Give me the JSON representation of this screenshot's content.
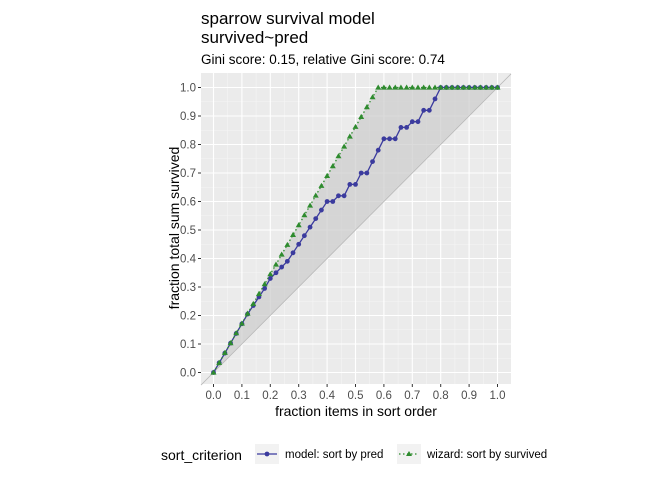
{
  "chart_data": {
    "type": "line",
    "title": "sparrow survival model",
    "title_line2": "survived~pred",
    "subtitle": "Gini score: 0.15, relative Gini score: 0.74",
    "xlabel": "fraction items in sort order",
    "ylabel": "fraction total sum survived",
    "xlim": [
      0.0,
      1.0
    ],
    "ylim": [
      0.0,
      1.0
    ],
    "x_ticks": [
      "0.0",
      "0.1",
      "0.2",
      "0.3",
      "0.4",
      "0.5",
      "0.6",
      "0.7",
      "0.8",
      "0.9",
      "1.0"
    ],
    "y_ticks": [
      "0.0",
      "0.1",
      "0.2",
      "0.3",
      "0.4",
      "0.5",
      "0.6",
      "0.7",
      "0.8",
      "0.9",
      "1.0"
    ],
    "grid": true,
    "panel_background": "#ebebeb",
    "legend": {
      "title": "sort_criterion",
      "position": "bottom"
    },
    "series": [
      {
        "name": "model: sort by pred",
        "color": "#3b3b9e",
        "marker": "circle",
        "line_style": "solid",
        "x": [
          0.0,
          0.02,
          0.04,
          0.06,
          0.08,
          0.1,
          0.12,
          0.14,
          0.16,
          0.18,
          0.2,
          0.22,
          0.24,
          0.26,
          0.28,
          0.3,
          0.32,
          0.34,
          0.36,
          0.38,
          0.4,
          0.42,
          0.44,
          0.46,
          0.48,
          0.5,
          0.52,
          0.54,
          0.56,
          0.58,
          0.6,
          0.62,
          0.64,
          0.66,
          0.68,
          0.7,
          0.72,
          0.74,
          0.76,
          0.78,
          0.8,
          0.82,
          0.84,
          0.86,
          0.88,
          0.9,
          0.92,
          0.94,
          0.96,
          0.98,
          1.0
        ],
        "y": [
          0.0,
          0.034,
          0.068,
          0.103,
          0.137,
          0.171,
          0.205,
          0.235,
          0.265,
          0.295,
          0.33,
          0.35,
          0.37,
          0.39,
          0.42,
          0.45,
          0.48,
          0.51,
          0.54,
          0.57,
          0.6,
          0.6,
          0.62,
          0.62,
          0.66,
          0.66,
          0.7,
          0.7,
          0.74,
          0.78,
          0.82,
          0.82,
          0.82,
          0.86,
          0.86,
          0.88,
          0.88,
          0.92,
          0.92,
          0.96,
          1.0,
          1.0,
          1.0,
          1.0,
          1.0,
          1.0,
          1.0,
          1.0,
          1.0,
          1.0,
          1.0
        ]
      },
      {
        "name": "wizard: sort by survived",
        "color": "#2e8b2e",
        "marker": "triangle",
        "line_style": "dotted",
        "x": [
          0.0,
          0.02,
          0.04,
          0.06,
          0.08,
          0.1,
          0.12,
          0.14,
          0.16,
          0.18,
          0.2,
          0.22,
          0.24,
          0.26,
          0.28,
          0.3,
          0.32,
          0.34,
          0.36,
          0.38,
          0.4,
          0.42,
          0.44,
          0.46,
          0.48,
          0.5,
          0.52,
          0.54,
          0.56,
          0.58,
          0.6,
          0.62,
          0.64,
          0.66,
          0.68,
          0.7,
          0.72,
          0.74,
          0.76,
          0.78,
          0.8,
          0.82,
          0.84,
          0.86,
          0.88,
          0.9,
          0.92,
          0.94,
          0.96,
          0.98,
          1.0
        ],
        "y": [
          0.0,
          0.034,
          0.069,
          0.103,
          0.138,
          0.172,
          0.207,
          0.241,
          0.276,
          0.31,
          0.345,
          0.379,
          0.414,
          0.448,
          0.483,
          0.517,
          0.552,
          0.586,
          0.621,
          0.655,
          0.69,
          0.724,
          0.759,
          0.793,
          0.828,
          0.862,
          0.897,
          0.931,
          0.966,
          1.0,
          1.0,
          1.0,
          1.0,
          1.0,
          1.0,
          1.0,
          1.0,
          1.0,
          1.0,
          1.0,
          1.0,
          1.0,
          1.0,
          1.0,
          1.0,
          1.0,
          1.0,
          1.0,
          1.0,
          1.0,
          1.0
        ]
      }
    ]
  }
}
